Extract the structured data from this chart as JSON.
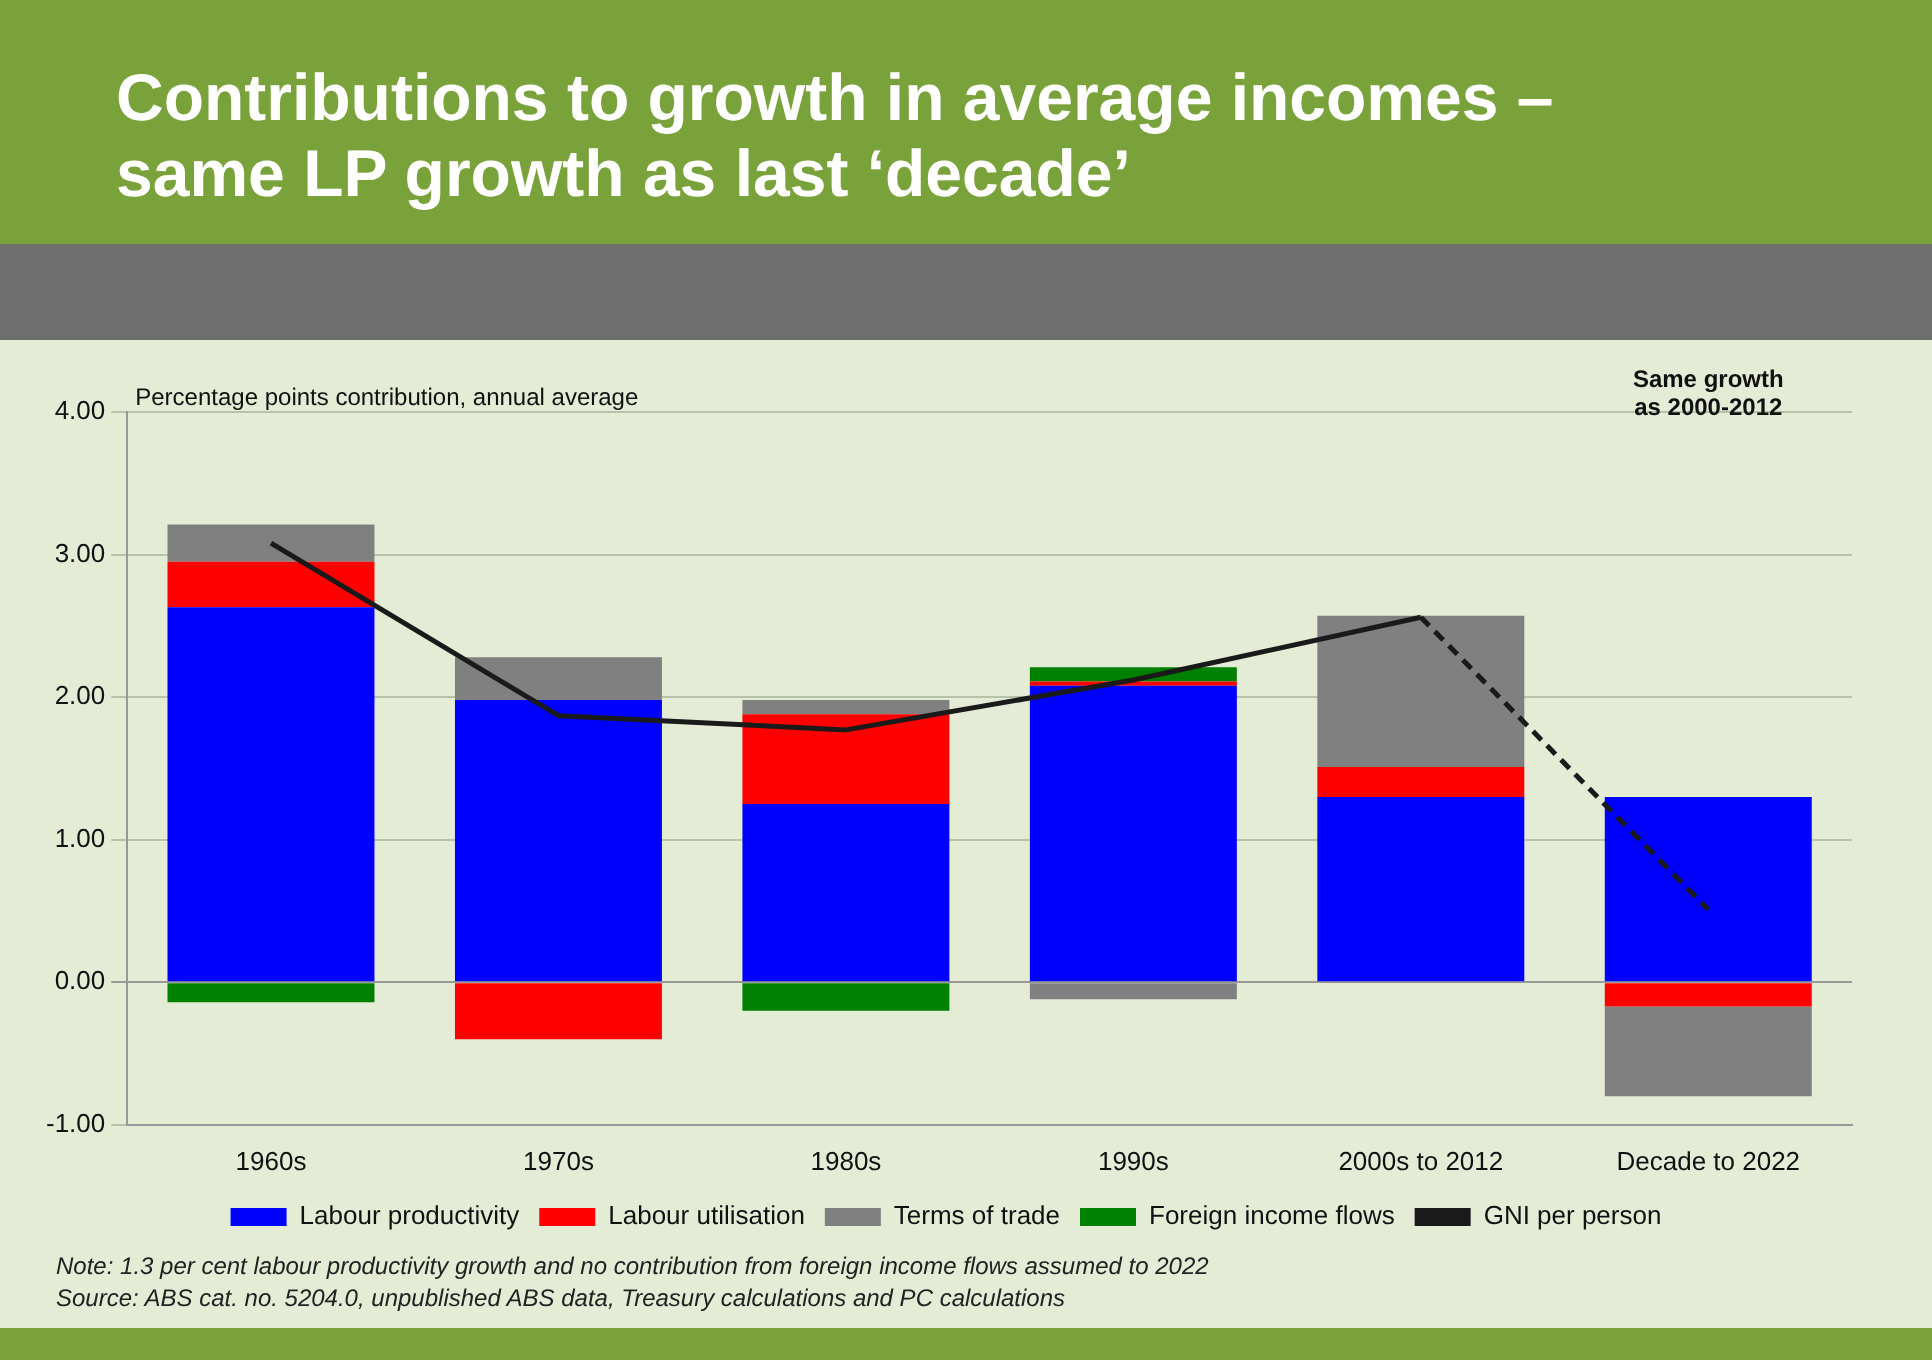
{
  "chart_data": {
    "type": "bar",
    "title": "Contributions to growth in average incomes – same LP growth as last ‘decade’",
    "ylabel": "Percentage points contribution, annual average",
    "categories": [
      "1960s",
      "1970s",
      "1980s",
      "1990s",
      "2000s to 2012",
      "Decade to 2022"
    ],
    "stacked": true,
    "series": [
      {
        "name": "Labour productivity",
        "color": "#0000ff",
        "values": [
          2.63,
          1.98,
          1.25,
          2.08,
          1.3,
          1.3
        ]
      },
      {
        "name": "Labour utilisation",
        "color": "#ff0000",
        "values": [
          0.32,
          -0.4,
          0.63,
          0.03,
          0.21,
          -0.17
        ]
      },
      {
        "name": "Terms of trade",
        "color": "#808080",
        "values": [
          0.26,
          0.3,
          0.1,
          -0.12,
          1.06,
          -0.63
        ]
      },
      {
        "name": "Foreign income flows",
        "color": "#008000",
        "values": [
          -0.14,
          0,
          -0.2,
          0.1,
          0,
          0
        ]
      },
      {
        "name": "GNI per person",
        "type": "line",
        "color": "#1a1a1a",
        "line_style": "solid",
        "marker": "none",
        "values": [
          3.08,
          1.87,
          1.77,
          2.12,
          2.56,
          null
        ]
      },
      {
        "type": "line",
        "color": "#1a1a1a",
        "line_style": "dashed",
        "marker": "none",
        "values": [
          null,
          null,
          null,
          null,
          2.56,
          0.51
        ]
      }
    ],
    "ylim": [
      -1,
      4
    ],
    "yticks": [
      {
        "value": -1,
        "label": "-1.00"
      },
      {
        "value": 0,
        "label": "0.00"
      },
      {
        "value": 1,
        "label": "1.00"
      },
      {
        "value": 2,
        "label": "2.00"
      },
      {
        "value": 3,
        "label": "3.00"
      },
      {
        "value": 4,
        "label": "4.00"
      }
    ],
    "grid": "y",
    "legend": "bottom",
    "annotations": [
      "Same growth as 2000-2012",
      "Note: 1.3 per cent labour productivity growth and no contribution from foreign income flows assumed to 2022",
      "Source: ABS cat. no. 5204.0, unpublished ABS data, Treasury calculations and PC calculations"
    ]
  }
}
